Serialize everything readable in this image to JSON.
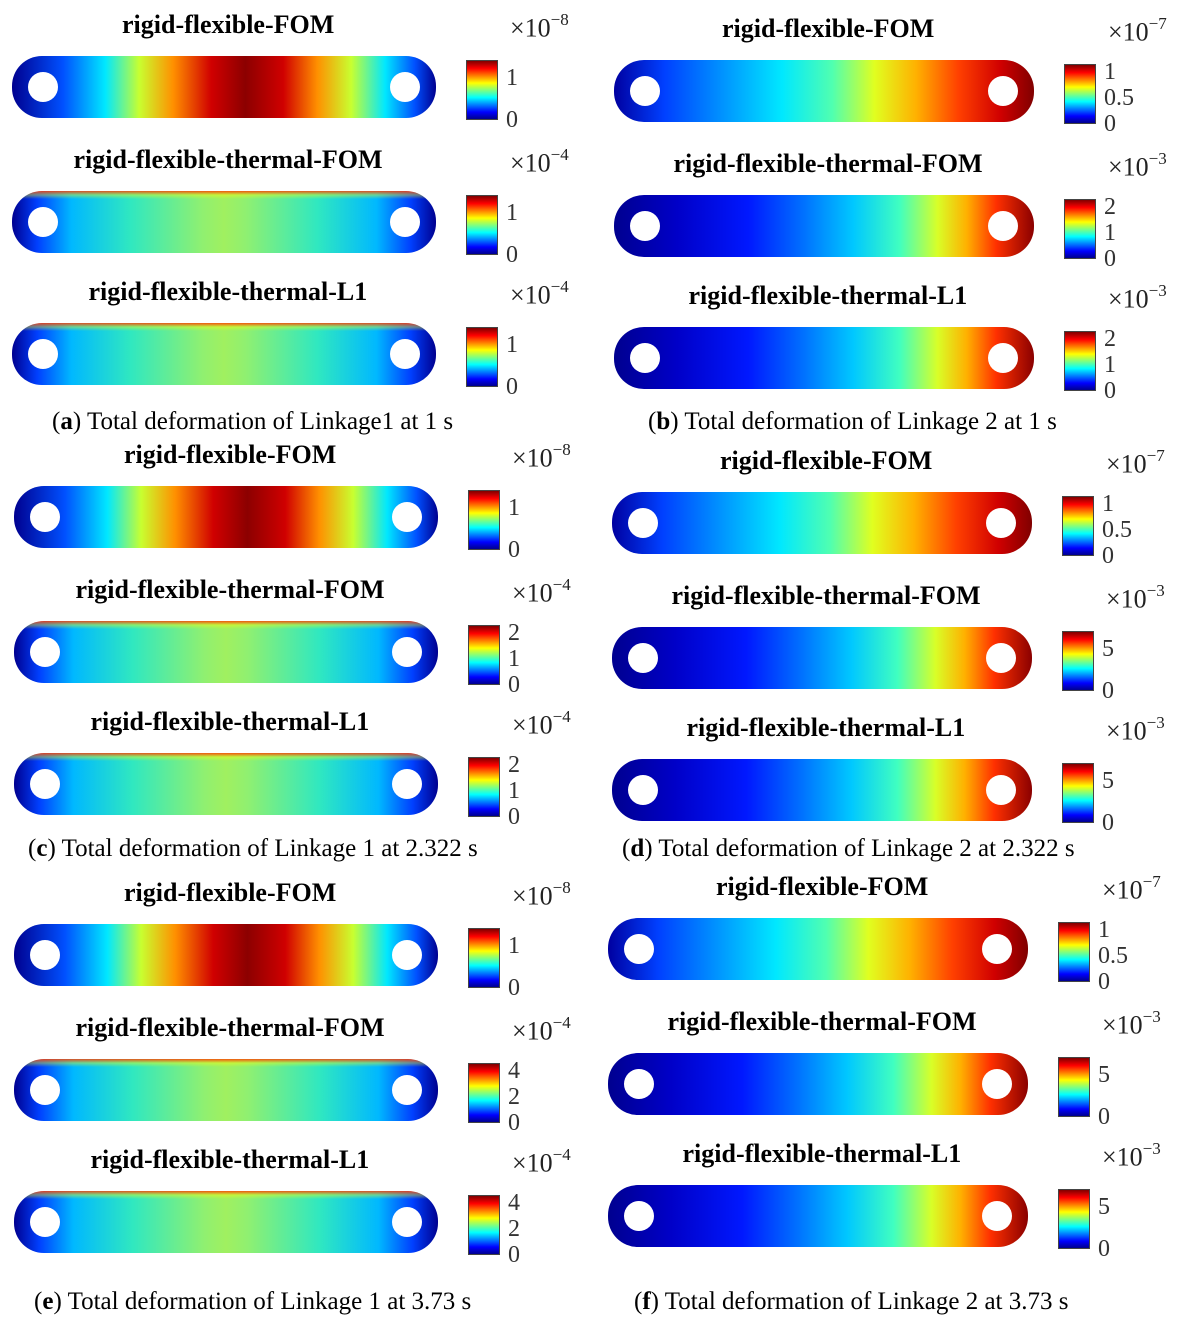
{
  "panels": [
    {
      "id": "a",
      "caption": {
        "letter": "a",
        "text": "Total deformation of Linkage1 at 1 s"
      },
      "rows": [
        {
          "title": "rigid-flexible-FOM",
          "multiplier_base": "×10",
          "multiplier_exp": "−8",
          "ticks": [
            "1",
            "0"
          ]
        },
        {
          "title": "rigid-flexible-thermal-FOM",
          "multiplier_base": "×10",
          "multiplier_exp": "−4",
          "ticks": [
            "1",
            "0"
          ]
        },
        {
          "title": "rigid-flexible-thermal-L1",
          "multiplier_base": "×10",
          "multiplier_exp": "−4",
          "ticks": [
            "1",
            "0"
          ]
        }
      ]
    },
    {
      "id": "b",
      "caption": {
        "letter": "b",
        "text": "Total deformation of Linkage 2 at 1 s"
      },
      "rows": [
        {
          "title": "rigid-flexible-FOM",
          "multiplier_base": "×10",
          "multiplier_exp": "−7",
          "ticks": [
            "1",
            "0.5",
            "0"
          ]
        },
        {
          "title": "rigid-flexible-thermal-FOM",
          "multiplier_base": "×10",
          "multiplier_exp": "−3",
          "ticks": [
            "2",
            "1",
            "0"
          ]
        },
        {
          "title": "rigid-flexible-thermal-L1",
          "multiplier_base": "×10",
          "multiplier_exp": "−3",
          "ticks": [
            "2",
            "1",
            "0"
          ]
        }
      ]
    },
    {
      "id": "c",
      "caption": {
        "letter": "c",
        "text": "Total deformation of Linkage 1 at 2.322 s"
      },
      "rows": [
        {
          "title": "rigid-flexible-FOM",
          "multiplier_base": "×10",
          "multiplier_exp": "−8",
          "ticks": [
            "1",
            "0"
          ]
        },
        {
          "title": "rigid-flexible-thermal-FOM",
          "multiplier_base": "×10",
          "multiplier_exp": "−4",
          "ticks": [
            "2",
            "1",
            "0"
          ]
        },
        {
          "title": "rigid-flexible-thermal-L1",
          "multiplier_base": "×10",
          "multiplier_exp": "−4",
          "ticks": [
            "2",
            "1",
            "0"
          ]
        }
      ]
    },
    {
      "id": "d",
      "caption": {
        "letter": "d",
        "text": "Total deformation of Linkage 2 at 2.322 s"
      },
      "rows": [
        {
          "title": "rigid-flexible-FOM",
          "multiplier_base": "×10",
          "multiplier_exp": "−7",
          "ticks": [
            "1",
            "0.5",
            "0"
          ]
        },
        {
          "title": "rigid-flexible-thermal-FOM",
          "multiplier_base": "×10",
          "multiplier_exp": "−3",
          "ticks": [
            "5",
            "0"
          ]
        },
        {
          "title": "rigid-flexible-thermal-L1",
          "multiplier_base": "×10",
          "multiplier_exp": "−3",
          "ticks": [
            "5",
            "0"
          ]
        }
      ]
    },
    {
      "id": "e",
      "caption": {
        "letter": "e",
        "text": "Total deformation of Linkage 1 at 3.73 s"
      },
      "rows": [
        {
          "title": "rigid-flexible-FOM",
          "multiplier_base": "×10",
          "multiplier_exp": "−8",
          "ticks": [
            "1",
            "0"
          ]
        },
        {
          "title": "rigid-flexible-thermal-FOM",
          "multiplier_base": "×10",
          "multiplier_exp": "−4",
          "ticks": [
            "4",
            "2",
            "0"
          ]
        },
        {
          "title": "rigid-flexible-thermal-L1",
          "multiplier_base": "×10",
          "multiplier_exp": "−4",
          "ticks": [
            "4",
            "2",
            "0"
          ]
        }
      ]
    },
    {
      "id": "f",
      "caption": {
        "letter": "f",
        "text": "Total deformation of Linkage 2 at 3.73 s"
      },
      "rows": [
        {
          "title": "rigid-flexible-FOM",
          "multiplier_base": "×10",
          "multiplier_exp": "−7",
          "ticks": [
            "1",
            "0.5",
            "0"
          ]
        },
        {
          "title": "rigid-flexible-thermal-FOM",
          "multiplier_base": "×10",
          "multiplier_exp": "−3",
          "ticks": [
            "5",
            "0"
          ]
        },
        {
          "title": "rigid-flexible-thermal-L1",
          "multiplier_base": "×10",
          "multiplier_exp": "−3",
          "ticks": [
            "5",
            "0"
          ]
        }
      ]
    }
  ],
  "colormap": "jet"
}
